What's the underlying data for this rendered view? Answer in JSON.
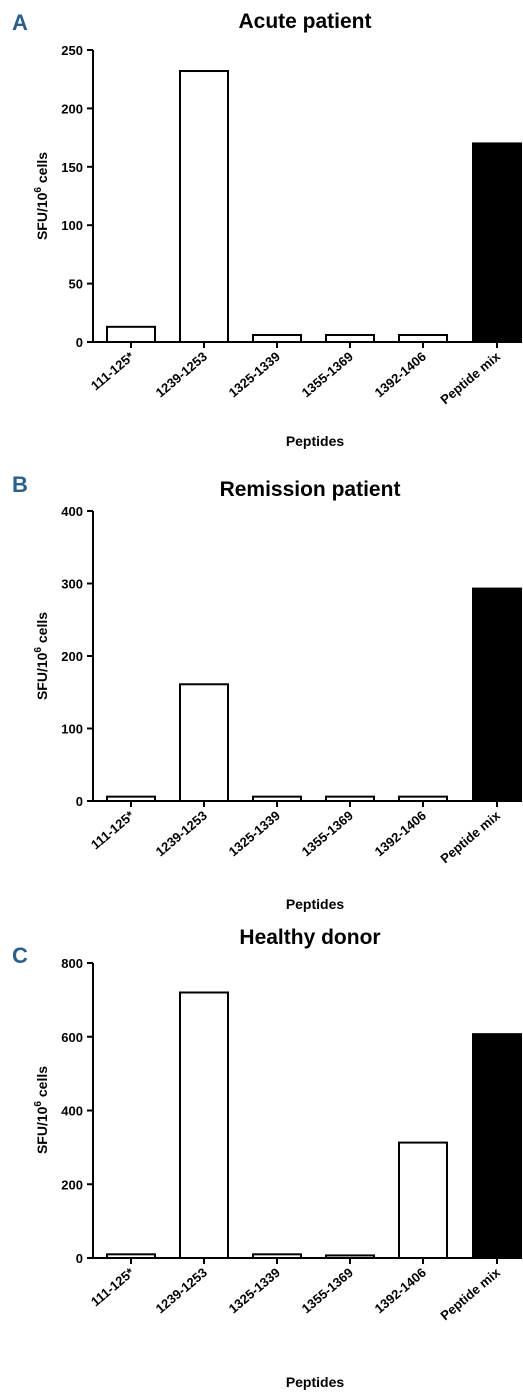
{
  "chart_data": [
    {
      "panel": "A",
      "type": "bar",
      "title": "Acute patient",
      "xlabel": "Peptides",
      "ylabel_main": "SFU/10",
      "ylabel_sup": "6",
      "ylabel_tail": " cells",
      "categories": [
        "111-125*",
        "1239-1253",
        "1325-1339",
        "1355-1369",
        "1392-1406",
        "Peptide mix"
      ],
      "values": [
        13,
        232,
        6,
        6,
        6,
        170
      ],
      "fills": [
        "#ffffff",
        "#ffffff",
        "#ffffff",
        "#ffffff",
        "#ffffff",
        "#000000"
      ],
      "ylim": [
        0,
        250
      ],
      "yticks": [
        0,
        50,
        100,
        150,
        200,
        250
      ],
      "grid": false
    },
    {
      "panel": "B",
      "type": "bar",
      "title": "Remission patient",
      "xlabel": "Peptides",
      "ylabel_main": "SFU/10",
      "ylabel_sup": "6",
      "ylabel_tail": " cells",
      "categories": [
        "111-125*",
        "1239-1253",
        "1325-1339",
        "1355-1369",
        "1392-1406",
        "Peptide mix"
      ],
      "values": [
        6,
        161,
        6,
        6,
        6,
        293
      ],
      "fills": [
        "#ffffff",
        "#ffffff",
        "#ffffff",
        "#ffffff",
        "#ffffff",
        "#000000"
      ],
      "ylim": [
        0,
        400
      ],
      "yticks": [
        0,
        100,
        200,
        300,
        400
      ],
      "grid": false
    },
    {
      "panel": "C",
      "type": "bar",
      "title": "Healthy donor",
      "xlabel": "Peptides",
      "ylabel_main": "SFU/10",
      "ylabel_sup": "6",
      "ylabel_tail": " cells",
      "categories": [
        "111-125*",
        "1239-1253",
        "1325-1339",
        "1355-1369",
        "1392-1406",
        "Peptide mix"
      ],
      "values": [
        10,
        720,
        10,
        7,
        313,
        607
      ],
      "fills": [
        "#ffffff",
        "#ffffff",
        "#ffffff",
        "#ffffff",
        "#ffffff",
        "#000000"
      ],
      "ylim": [
        0,
        800
      ],
      "yticks": [
        0,
        200,
        400,
        600,
        800
      ],
      "grid": false
    }
  ]
}
